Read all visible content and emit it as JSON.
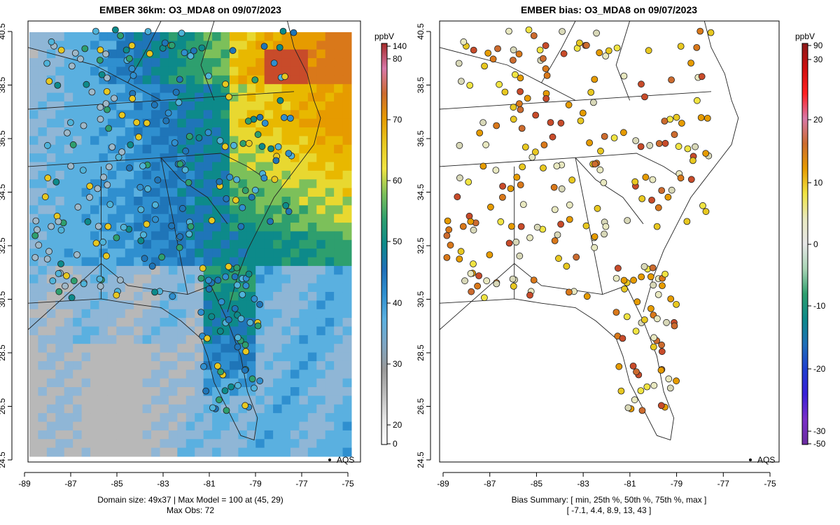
{
  "left_panel": {
    "title": "EMBER 36km: O3_MDA8 on 09/07/2023",
    "legend_label": "AQS",
    "footer_line1": "Domain size: 49x37 | Max Model = 100 at (45, 29)",
    "footer_line2": "Max Obs: 72",
    "colorbar": {
      "unit": "ppbV",
      "ticks": [
        "140",
        "80",
        "70",
        "60",
        "50",
        "40",
        "30",
        "20",
        "0"
      ],
      "colors": [
        "#a52a2a",
        "#d878a8",
        "#cc6b2e",
        "#e69b00",
        "#e8c820",
        "#f0e442",
        "#7cc05a",
        "#2e9f6e",
        "#0d8a8a",
        "#1f6fb8",
        "#2f8fcf",
        "#5ab0e0",
        "#7ea6c4",
        "#999999",
        "#bdbdbd",
        "#e6e6e6",
        "#ffffff"
      ]
    }
  },
  "right_panel": {
    "title": "EMBER bias: O3_MDA8 on 09/07/2023",
    "legend_label": "AQS",
    "footer_line1": "Bias Summary: [ min, 25th %, 50th %, 75th %, max ]",
    "footer_line2": "[ -7.1,   4.4,   8.9,   13,   43 ]",
    "colorbar": {
      "unit": "ppbV",
      "ticks": [
        "90",
        "30",
        "20",
        "10",
        "0",
        "-10",
        "-20",
        "-30",
        "-50"
      ],
      "colors": [
        "#8b1a1a",
        "#d01010",
        "#ff2020",
        "#d878a8",
        "#cc6b2e",
        "#e69b00",
        "#f0e442",
        "#e8e8c0",
        "#e6e6e6",
        "#a8d5b5",
        "#2e9f6e",
        "#0d8a8a",
        "#1f6fb8",
        "#1f3fd0",
        "#3a20d8",
        "#7a2fc8",
        "#6a2ca0"
      ]
    }
  },
  "axes": {
    "lon_ticks": [
      "-89",
      "-87",
      "-85",
      "-83",
      "-81",
      "-79",
      "-77",
      "-75"
    ],
    "lat_ticks": [
      "40.5",
      "38.5",
      "36.5",
      "34.5",
      "32.5",
      "30.5",
      "28.5",
      "26.5",
      "24.5"
    ]
  }
}
